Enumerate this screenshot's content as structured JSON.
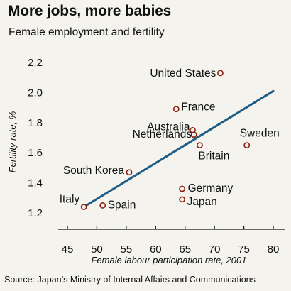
{
  "chart_data": {
    "type": "scatter",
    "title": "More jobs, more babies",
    "subtitle": "Female employment and fertility",
    "xlabel": "Female labour participation rate, 2001",
    "ylabel": "Fertility rate, %",
    "xlim": [
      45,
      80
    ],
    "ylim": [
      1.2,
      2.2
    ],
    "xticks": [
      "45",
      "50",
      "55",
      "60",
      "65",
      "70",
      "75",
      "80"
    ],
    "yticks": [
      "1.2",
      "1.4",
      "1.6",
      "1.8",
      "2.0",
      "2.2"
    ],
    "grid": false,
    "points": [
      {
        "label": "United States",
        "x": 71,
        "y": 2.13
      },
      {
        "label": "France",
        "x": 63.5,
        "y": 1.89
      },
      {
        "label": "Australia",
        "x": 66.3,
        "y": 1.75
      },
      {
        "label": "Netherlands",
        "x": 66.5,
        "y": 1.72
      },
      {
        "label": "Britain",
        "x": 67.5,
        "y": 1.65
      },
      {
        "label": "Sweden",
        "x": 75.5,
        "y": 1.65
      },
      {
        "label": "South Korea",
        "x": 55.5,
        "y": 1.47
      },
      {
        "label": "Germany",
        "x": 64.5,
        "y": 1.36
      },
      {
        "label": "Japan",
        "x": 64.5,
        "y": 1.29
      },
      {
        "label": "Italy",
        "x": 47.8,
        "y": 1.24
      },
      {
        "label": "Spain",
        "x": 51,
        "y": 1.25
      }
    ],
    "trend_line": {
      "x": [
        47.8,
        80
      ],
      "y": [
        1.24,
        2.01
      ]
    },
    "colors": {
      "background": "#f4f3ee",
      "line": "#1f5d86",
      "marker_edge": "#8b1f12",
      "marker_fill": "#f4f3ee",
      "axis": "#111111"
    },
    "source": "Source: Japan’s Ministry of Internal Affairs and Communications"
  }
}
